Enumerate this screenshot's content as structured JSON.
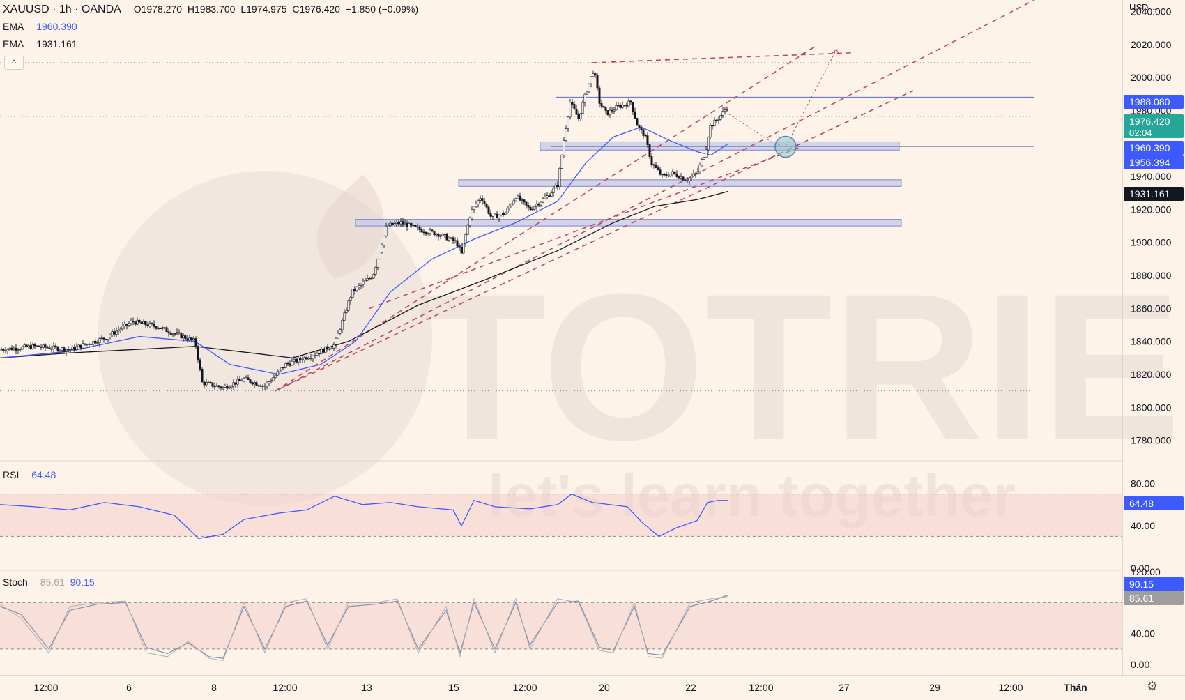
{
  "header": {
    "symbol": "XAUUSD · 1h · OANDA",
    "open_label": "O",
    "open": "1978.270",
    "high_label": "H",
    "high": "1983.700",
    "low_label": "L",
    "low": "1974.975",
    "close_label": "C",
    "close": "1976.420",
    "change": "−1.850 (−0.09%)"
  },
  "indicators": {
    "ema1": {
      "label": "EMA",
      "value": "1960.390",
      "color": "#3d5afe"
    },
    "ema2": {
      "label": "EMA",
      "value": "1931.161",
      "color": "#131722"
    },
    "collapse": "^",
    "rsi": {
      "label": "RSI",
      "value": "64.48",
      "color": "#3d5afe"
    },
    "stoch": {
      "label": "Stoch",
      "k": "85.61",
      "d": "90.15"
    }
  },
  "currency": "USD",
  "watermark": {
    "brand": "TOTRIEU",
    "slogan": "let's learn together"
  },
  "price_tags": [
    {
      "text": "1988.080",
      "bg": "#3d5afe",
      "fg": "#ffffff"
    },
    {
      "text": "1976.420",
      "sub": "02:04",
      "bg": "#27a69a",
      "fg": "#ffffff"
    },
    {
      "text": "1960.390",
      "bg": "#3d5afe",
      "fg": "#ffffff"
    },
    {
      "text": "1956.394",
      "bg": "#3d5afe",
      "fg": "#ffffff"
    },
    {
      "text": "1931.161",
      "bg": "#131722",
      "fg": "#ffffff"
    }
  ],
  "rsi_tag": {
    "text": "64.48",
    "bg": "#3d5afe"
  },
  "stoch_tags": [
    {
      "text": "90.15",
      "bg": "#3d5afe"
    },
    {
      "text": "85.61",
      "bg": "#9e9e9e"
    }
  ],
  "rsi_axis": [
    "80.00",
    "40.00",
    "0.00"
  ],
  "stoch_axis": [
    "120.00",
    "40.00",
    "0.00"
  ],
  "chart_data": {
    "type": "candlestick",
    "price_axis": {
      "range": [
        1768,
        2047
      ],
      "ticks": [
        "2040.000",
        "2020.000",
        "2000.000",
        "1980.000",
        "1940.000",
        "1920.000",
        "1900.000",
        "1880.000",
        "1860.000",
        "1840.000",
        "1820.000",
        "1800.000",
        "1780.000"
      ]
    },
    "x_axis": {
      "ticks": [
        "12:00",
        "6",
        "8",
        "12:00",
        "13",
        "15",
        "12:00",
        "20",
        "22",
        "12:00",
        "27",
        "29",
        "12:00",
        "Thán"
      ]
    },
    "price_path": [
      [
        0,
        1835
      ],
      [
        50,
        1837
      ],
      [
        100,
        1835
      ],
      [
        150,
        1842
      ],
      [
        190,
        1852
      ],
      [
        225,
        1849
      ],
      [
        280,
        1840
      ],
      [
        290,
        1815
      ],
      [
        320,
        1812
      ],
      [
        350,
        1817
      ],
      [
        380,
        1813
      ],
      [
        410,
        1826
      ],
      [
        450,
        1832
      ],
      [
        480,
        1838
      ],
      [
        505,
        1870
      ],
      [
        520,
        1875
      ],
      [
        535,
        1880
      ],
      [
        555,
        1910
      ],
      [
        575,
        1912
      ],
      [
        600,
        1908
      ],
      [
        630,
        1905
      ],
      [
        655,
        1900
      ],
      [
        662,
        1893
      ],
      [
        675,
        1918
      ],
      [
        690,
        1928
      ],
      [
        705,
        1915
      ],
      [
        725,
        1918
      ],
      [
        740,
        1928
      ],
      [
        760,
        1920
      ],
      [
        785,
        1928
      ],
      [
        800,
        1935
      ],
      [
        810,
        1965
      ],
      [
        818,
        1985
      ],
      [
        830,
        1975
      ],
      [
        840,
        1990
      ],
      [
        852,
        2005
      ],
      [
        860,
        1985
      ],
      [
        870,
        1978
      ],
      [
        885,
        1982
      ],
      [
        905,
        1985
      ],
      [
        915,
        1970
      ],
      [
        925,
        1965
      ],
      [
        935,
        1948
      ],
      [
        950,
        1940
      ],
      [
        965,
        1942
      ],
      [
        985,
        1938
      ],
      [
        1000,
        1942
      ],
      [
        1012,
        1955
      ],
      [
        1018,
        1970
      ],
      [
        1030,
        1975
      ],
      [
        1045,
        1983
      ]
    ],
    "ema_fast_path": [
      [
        0,
        1830
      ],
      [
        100,
        1834
      ],
      [
        200,
        1843
      ],
      [
        280,
        1840
      ],
      [
        330,
        1826
      ],
      [
        400,
        1820
      ],
      [
        460,
        1826
      ],
      [
        510,
        1840
      ],
      [
        560,
        1870
      ],
      [
        620,
        1890
      ],
      [
        680,
        1902
      ],
      [
        740,
        1912
      ],
      [
        800,
        1925
      ],
      [
        840,
        1948
      ],
      [
        880,
        1964
      ],
      [
        920,
        1970
      ],
      [
        960,
        1962
      ],
      [
        1000,
        1955
      ],
      [
        1020,
        1953
      ],
      [
        1045,
        1960
      ]
    ],
    "ema_slow_path": [
      [
        0,
        1830
      ],
      [
        100,
        1833
      ],
      [
        280,
        1837
      ],
      [
        420,
        1830
      ],
      [
        500,
        1840
      ],
      [
        600,
        1862
      ],
      [
        700,
        1878
      ],
      [
        800,
        1895
      ],
      [
        880,
        1912
      ],
      [
        940,
        1922
      ],
      [
        1000,
        1926
      ],
      [
        1045,
        1931
      ]
    ],
    "zones": [
      {
        "x1": 775,
        "x2": 1290,
        "y1": 1956,
        "y2": 1961
      },
      {
        "x1": 658,
        "x2": 1293,
        "y1": 1934,
        "y2": 1938
      },
      {
        "x1": 510,
        "x2": 1293,
        "y1": 1910,
        "y2": 1914
      }
    ],
    "hlines": [
      {
        "y": 1988.08,
        "x1": 797,
        "x2": 1484,
        "style": "solid",
        "color": "#5c6bc0"
      },
      {
        "y": 1958.2,
        "x1": 790,
        "x2": 1484,
        "style": "solid",
        "color": "#5c6bc0"
      },
      {
        "y": 1976.42,
        "x1": 0,
        "x2": 1484,
        "style": "dotted",
        "color": "#888888"
      },
      {
        "y": 2009.0,
        "x1": 0,
        "x2": 1484,
        "style": "dotted",
        "color": "#888888"
      },
      {
        "y": 1810.0,
        "x1": 0,
        "x2": 1484,
        "style": "dotted",
        "color": "#888888"
      }
    ],
    "trendlines": [
      [
        [
          395,
          1810
        ],
        [
          1170,
          2019
        ]
      ],
      [
        [
          395,
          1810
        ],
        [
          1484,
          2047
        ]
      ],
      [
        [
          400,
          1811
        ],
        [
          1310,
          1992
        ]
      ],
      [
        [
          530,
          1860
        ],
        [
          1150,
          1958
        ]
      ],
      [
        [
          850,
          2009
        ],
        [
          1225,
          2015
        ]
      ],
      [
        [
          1150,
          2014
        ],
        [
          1170,
          2019
        ]
      ]
    ],
    "projection": [
      [
        1045,
        1978
      ],
      [
        1110,
        1960
      ],
      [
        1127,
        1958
      ],
      [
        1200,
        2017
      ]
    ],
    "target_circle": {
      "x": 1127,
      "y": 1958
    },
    "rsi": {
      "range": [
        0,
        100
      ],
      "band": [
        30,
        70
      ],
      "last": 64.48,
      "path": [
        [
          0,
          60
        ],
        [
          50,
          58
        ],
        [
          100,
          55
        ],
        [
          150,
          62
        ],
        [
          200,
          58
        ],
        [
          250,
          50
        ],
        [
          285,
          28
        ],
        [
          320,
          32
        ],
        [
          350,
          46
        ],
        [
          400,
          52
        ],
        [
          440,
          55
        ],
        [
          480,
          68
        ],
        [
          520,
          60
        ],
        [
          560,
          62
        ],
        [
          600,
          58
        ],
        [
          650,
          55
        ],
        [
          662,
          40
        ],
        [
          680,
          64
        ],
        [
          710,
          58
        ],
        [
          760,
          56
        ],
        [
          800,
          60
        ],
        [
          820,
          70
        ],
        [
          850,
          62
        ],
        [
          900,
          58
        ],
        [
          920,
          44
        ],
        [
          945,
          30
        ],
        [
          970,
          38
        ],
        [
          1000,
          45
        ],
        [
          1015,
          62
        ],
        [
          1030,
          64
        ],
        [
          1045,
          64
        ]
      ]
    },
    "stoch": {
      "range": [
        0,
        120
      ],
      "band": [
        20,
        80
      ],
      "k_path": [
        [
          0,
          78
        ],
        [
          30,
          60
        ],
        [
          70,
          15
        ],
        [
          100,
          75
        ],
        [
          140,
          80
        ],
        [
          180,
          82
        ],
        [
          210,
          15
        ],
        [
          240,
          10
        ],
        [
          270,
          30
        ],
        [
          300,
          8
        ],
        [
          320,
          5
        ],
        [
          350,
          80
        ],
        [
          380,
          15
        ],
        [
          410,
          80
        ],
        [
          440,
          85
        ],
        [
          470,
          20
        ],
        [
          500,
          80
        ],
        [
          540,
          80
        ],
        [
          570,
          85
        ],
        [
          600,
          15
        ],
        [
          640,
          75
        ],
        [
          660,
          10
        ],
        [
          680,
          85
        ],
        [
          710,
          15
        ],
        [
          740,
          85
        ],
        [
          760,
          20
        ],
        [
          800,
          85
        ],
        [
          830,
          80
        ],
        [
          860,
          18
        ],
        [
          880,
          15
        ],
        [
          910,
          80
        ],
        [
          930,
          10
        ],
        [
          950,
          8
        ],
        [
          990,
          80
        ],
        [
          1020,
          85
        ],
        [
          1045,
          88
        ]
      ],
      "d_path": [
        [
          0,
          75
        ],
        [
          30,
          65
        ],
        [
          70,
          20
        ],
        [
          100,
          70
        ],
        [
          140,
          78
        ],
        [
          180,
          80
        ],
        [
          210,
          22
        ],
        [
          240,
          14
        ],
        [
          270,
          28
        ],
        [
          300,
          10
        ],
        [
          320,
          8
        ],
        [
          350,
          75
        ],
        [
          380,
          20
        ],
        [
          410,
          75
        ],
        [
          440,
          82
        ],
        [
          470,
          25
        ],
        [
          500,
          75
        ],
        [
          540,
          78
        ],
        [
          570,
          82
        ],
        [
          600,
          20
        ],
        [
          640,
          70
        ],
        [
          660,
          15
        ],
        [
          680,
          80
        ],
        [
          710,
          20
        ],
        [
          740,
          80
        ],
        [
          760,
          25
        ],
        [
          800,
          80
        ],
        [
          830,
          82
        ],
        [
          860,
          22
        ],
        [
          880,
          18
        ],
        [
          910,
          75
        ],
        [
          930,
          14
        ],
        [
          950,
          12
        ],
        [
          990,
          75
        ],
        [
          1020,
          82
        ],
        [
          1045,
          90
        ]
      ]
    }
  }
}
